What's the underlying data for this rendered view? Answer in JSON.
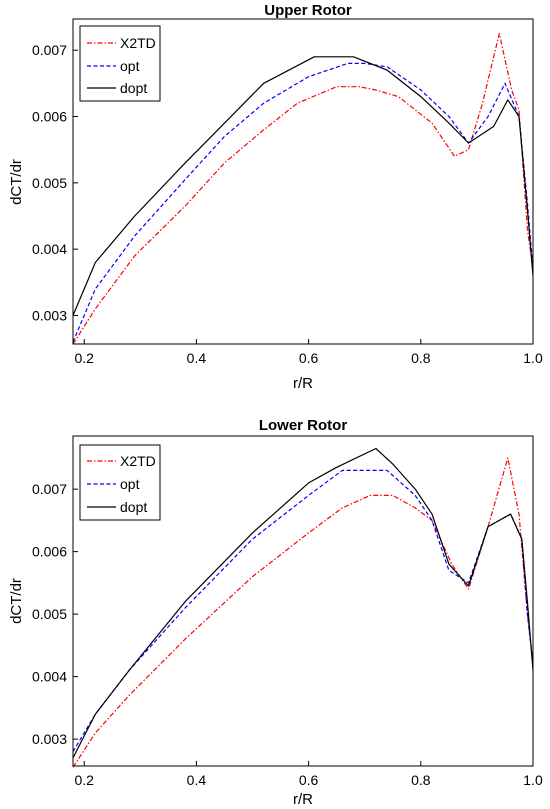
{
  "chart_data": [
    {
      "type": "line",
      "title": "Upper Rotor",
      "xlabel": "r/R",
      "ylabel": "dCT/dr",
      "xlim": [
        0.18,
        1.0
      ],
      "ylim": [
        0.00257,
        0.00747
      ],
      "xticks": [
        0.2,
        0.4,
        0.6,
        0.8,
        1.0
      ],
      "xtick_labels": [
        "0.2",
        "0.4",
        "0.6",
        "0.8",
        "1.0"
      ],
      "yticks": [
        0.003,
        0.004,
        0.005,
        0.006,
        0.007
      ],
      "ytick_labels": [
        "0.003",
        "0.004",
        "0.005",
        "0.006",
        "0.007"
      ],
      "grid": false,
      "legend_position": "top-left",
      "series": [
        {
          "name": "X2TD",
          "color": "#ff0000",
          "dash": "dashdot",
          "x": [
            0.18,
            0.22,
            0.29,
            0.38,
            0.45,
            0.52,
            0.58,
            0.65,
            0.69,
            0.72,
            0.76,
            0.82,
            0.86,
            0.885,
            0.91,
            0.94,
            0.962,
            0.975,
            0.99,
            1.0
          ],
          "y": [
            0.00257,
            0.0031,
            0.0039,
            0.00465,
            0.0053,
            0.0058,
            0.0062,
            0.00645,
            0.00645,
            0.0064,
            0.0063,
            0.0059,
            0.0054,
            0.0055,
            0.0062,
            0.00725,
            0.0064,
            0.0061,
            0.0043,
            0.0037
          ]
        },
        {
          "name": "opt",
          "color": "#0000ff",
          "dash": "dashed",
          "x": [
            0.18,
            0.22,
            0.29,
            0.38,
            0.45,
            0.52,
            0.6,
            0.67,
            0.7,
            0.74,
            0.8,
            0.85,
            0.885,
            0.92,
            0.95,
            0.975,
            0.99,
            1.0
          ],
          "y": [
            0.0026,
            0.0034,
            0.0042,
            0.00505,
            0.0057,
            0.0062,
            0.0066,
            0.0068,
            0.0068,
            0.00675,
            0.0064,
            0.006,
            0.0056,
            0.006,
            0.0065,
            0.006,
            0.0047,
            0.0037
          ]
        },
        {
          "name": "dopt",
          "color": "#000000",
          "dash": "solid",
          "x": [
            0.18,
            0.22,
            0.29,
            0.38,
            0.45,
            0.52,
            0.61,
            0.64,
            0.68,
            0.74,
            0.8,
            0.85,
            0.885,
            0.93,
            0.955,
            0.975,
            0.99,
            1.0
          ],
          "y": [
            0.003,
            0.0038,
            0.0045,
            0.0053,
            0.0059,
            0.0065,
            0.0069,
            0.0069,
            0.0069,
            0.0067,
            0.0063,
            0.0059,
            0.0056,
            0.00585,
            0.00625,
            0.006,
            0.0046,
            0.0036
          ]
        }
      ]
    },
    {
      "type": "line",
      "title": "Lower Rotor",
      "xlabel": "r/R",
      "ylabel": "dCT/dr",
      "xlim": [
        0.18,
        1.0
      ],
      "ylim": [
        0.00257,
        0.00785
      ],
      "xticks": [
        0.2,
        0.4,
        0.6,
        0.8,
        1.0
      ],
      "xtick_labels": [
        "0.2",
        "0.4",
        "0.6",
        "0.8",
        "1.0"
      ],
      "yticks": [
        0.003,
        0.004,
        0.005,
        0.006,
        0.007
      ],
      "ytick_labels": [
        "0.003",
        "0.004",
        "0.005",
        "0.006",
        "0.007"
      ],
      "grid": false,
      "legend_position": "top-left",
      "series": [
        {
          "name": "X2TD",
          "color": "#ff0000",
          "dash": "dashdot",
          "x": [
            0.18,
            0.22,
            0.28,
            0.38,
            0.5,
            0.6,
            0.66,
            0.71,
            0.75,
            0.79,
            0.82,
            0.855,
            0.885,
            0.92,
            0.955,
            0.975,
            0.99,
            1.0
          ],
          "y": [
            0.00255,
            0.0031,
            0.0037,
            0.0046,
            0.0056,
            0.0063,
            0.0067,
            0.0069,
            0.0069,
            0.0067,
            0.0065,
            0.0058,
            0.0054,
            0.0064,
            0.0075,
            0.0066,
            0.005,
            0.0042
          ]
        },
        {
          "name": "opt",
          "color": "#0000ff",
          "dash": "dashed",
          "x": [
            0.18,
            0.22,
            0.28,
            0.38,
            0.5,
            0.6,
            0.66,
            0.71,
            0.74,
            0.79,
            0.82,
            0.85,
            0.885,
            0.92,
            0.96,
            0.98,
            0.99,
            1.0
          ],
          "y": [
            0.0028,
            0.0034,
            0.0041,
            0.0051,
            0.0062,
            0.0069,
            0.0073,
            0.0073,
            0.0073,
            0.0069,
            0.0065,
            0.0057,
            0.0055,
            0.0064,
            0.0066,
            0.0062,
            0.005,
            0.0042
          ]
        },
        {
          "name": "dopt",
          "color": "#000000",
          "dash": "solid",
          "x": [
            0.18,
            0.22,
            0.28,
            0.38,
            0.5,
            0.6,
            0.65,
            0.72,
            0.75,
            0.79,
            0.82,
            0.85,
            0.885,
            0.92,
            0.96,
            0.98,
            0.99,
            1.0
          ],
          "y": [
            0.0027,
            0.0034,
            0.0041,
            0.0052,
            0.0063,
            0.0071,
            0.00735,
            0.00765,
            0.0074,
            0.007,
            0.0066,
            0.0058,
            0.00545,
            0.0064,
            0.0066,
            0.0062,
            0.0052,
            0.0041
          ]
        }
      ]
    }
  ]
}
